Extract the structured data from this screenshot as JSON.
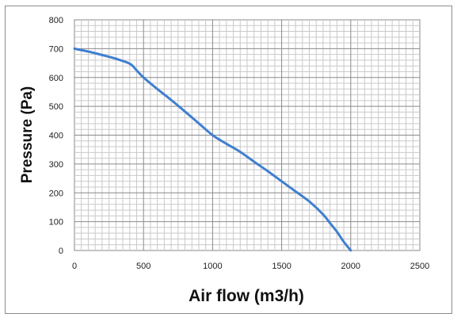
{
  "chart_data": {
    "type": "line",
    "title": "",
    "xlabel": "Air flow (m3/h)",
    "ylabel": "Pressure (Pa)",
    "xlim": [
      0,
      2500
    ],
    "ylim": [
      0,
      800
    ],
    "x_ticks": [
      0,
      500,
      1000,
      1500,
      2000,
      2500
    ],
    "y_ticks": [
      0,
      100,
      200,
      300,
      400,
      500,
      600,
      700,
      800
    ],
    "grid": true,
    "legend": "none",
    "series": [
      {
        "color": "#3f7fd0",
        "x": [
          0,
          100,
          200,
          300,
          400,
          450,
          500,
          600,
          700,
          800,
          900,
          1000,
          1100,
          1200,
          1300,
          1400,
          1500,
          1600,
          1700,
          1800,
          1850,
          1900,
          1950,
          2000
        ],
        "y": [
          700,
          690,
          678,
          665,
          648,
          625,
          600,
          560,
          522,
          482,
          441,
          400,
          370,
          342,
          308,
          275,
          240,
          205,
          170,
          125,
          95,
          65,
          30,
          0
        ]
      }
    ]
  }
}
